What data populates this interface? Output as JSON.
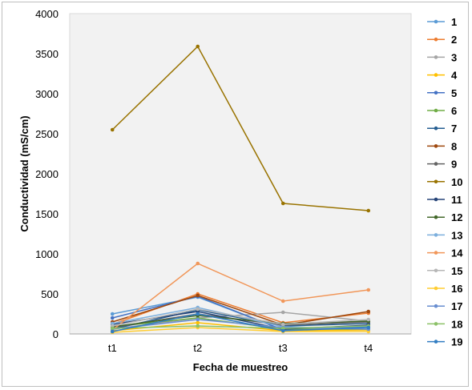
{
  "chart_data": {
    "type": "line",
    "title": "",
    "xlabel": "Fecha de muestreo",
    "ylabel": "Conductividad (mS/cm)",
    "categories": [
      "t1",
      "t2",
      "t3",
      "t4"
    ],
    "ylim": [
      0,
      4000
    ],
    "yticks": [
      0,
      500,
      1000,
      1500,
      2000,
      2500,
      3000,
      3500,
      4000
    ],
    "legend_position": "right",
    "series": [
      {
        "name": "1",
        "color": "#5B9BD5",
        "values": [
          250,
          460,
          50,
          90
        ]
      },
      {
        "name": "2",
        "color": "#ED7D31",
        "values": [
          120,
          500,
          140,
          260
        ]
      },
      {
        "name": "3",
        "color": "#A5A5A5",
        "values": [
          60,
          200,
          270,
          160
        ]
      },
      {
        "name": "4",
        "color": "#FFC000",
        "values": [
          40,
          140,
          40,
          50
        ]
      },
      {
        "name": "5",
        "color": "#4472C4",
        "values": [
          200,
          470,
          50,
          100
        ]
      },
      {
        "name": "6",
        "color": "#70AD47",
        "values": [
          90,
          200,
          60,
          60
        ]
      },
      {
        "name": "7",
        "color": "#255E91",
        "values": [
          60,
          300,
          100,
          130
        ]
      },
      {
        "name": "8",
        "color": "#9E480E",
        "values": [
          150,
          480,
          110,
          280
        ]
      },
      {
        "name": "9",
        "color": "#636363",
        "values": [
          80,
          250,
          110,
          150
        ]
      },
      {
        "name": "10",
        "color": "#997300",
        "values": [
          2550,
          3590,
          1630,
          1540
        ]
      },
      {
        "name": "11",
        "color": "#264478",
        "values": [
          120,
          280,
          60,
          110
        ]
      },
      {
        "name": "12",
        "color": "#43682B",
        "values": [
          90,
          230,
          130,
          160
        ]
      },
      {
        "name": "13",
        "color": "#7CAFDD",
        "values": [
          130,
          330,
          90,
          60
        ]
      },
      {
        "name": "14",
        "color": "#F1975A",
        "values": [
          50,
          880,
          410,
          550
        ]
      },
      {
        "name": "15",
        "color": "#B7B7B7",
        "values": [
          100,
          310,
          120,
          180
        ]
      },
      {
        "name": "16",
        "color": "#FFCD33",
        "values": [
          20,
          80,
          30,
          30
        ]
      },
      {
        "name": "17",
        "color": "#698ED0",
        "values": [
          60,
          180,
          80,
          60
        ]
      },
      {
        "name": "18",
        "color": "#8CC168",
        "values": [
          70,
          100,
          70,
          100
        ]
      },
      {
        "name": "19",
        "color": "#327DC2",
        "values": [
          30,
          250,
          40,
          80
        ]
      }
    ]
  }
}
